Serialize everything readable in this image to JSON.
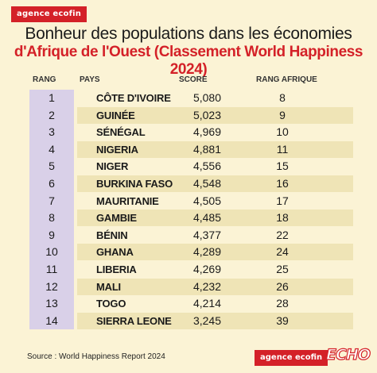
{
  "brand_top": "agence ecofin",
  "title_line1": "Bonheur des populations dans les économies",
  "title_line2": "d'Afrique de l'Ouest (Classement World Happiness 2024)",
  "columns": {
    "rank": "RANG",
    "country": "PAYS",
    "score": "SCORE",
    "africa_rank": "RANG AFRIQUE"
  },
  "rows": [
    {
      "rank": "1",
      "country": "CÔTE D'IVOIRE",
      "score": "5,080",
      "africa_rank": "8"
    },
    {
      "rank": "2",
      "country": "GUINÉE",
      "score": "5,023",
      "africa_rank": "9"
    },
    {
      "rank": "3",
      "country": "SÉNÉGAL",
      "score": "4,969",
      "africa_rank": "10"
    },
    {
      "rank": "4",
      "country": "NIGERIA",
      "score": "4,881",
      "africa_rank": "11"
    },
    {
      "rank": "5",
      "country": "NIGER",
      "score": "4,556",
      "africa_rank": "15"
    },
    {
      "rank": "6",
      "country": "BURKINA FASO",
      "score": "4,548",
      "africa_rank": "16"
    },
    {
      "rank": "7",
      "country": "MAURITANIE",
      "score": "4,505",
      "africa_rank": "17"
    },
    {
      "rank": "8",
      "country": "GAMBIE",
      "score": "4,485",
      "africa_rank": "18"
    },
    {
      "rank": "9",
      "country": "BÉNIN",
      "score": "4,377",
      "africa_rank": "22"
    },
    {
      "rank": "10",
      "country": "GHANA",
      "score": "4,289",
      "africa_rank": "24"
    },
    {
      "rank": "11",
      "country": "LIBERIA",
      "score": "4,269",
      "africa_rank": "25"
    },
    {
      "rank": "12",
      "country": "MALI",
      "score": "4,232",
      "africa_rank": "26"
    },
    {
      "rank": "13",
      "country": "TOGO",
      "score": "4,214",
      "africa_rank": "28"
    },
    {
      "rank": "14",
      "country": "SIERRA LEONE",
      "score": "3,245",
      "africa_rank": "39"
    }
  ],
  "source": "Source : World Happiness Report 2024",
  "brand_bottom": "agence ecofin",
  "brand_echo": "ECHO",
  "colors": {
    "background": "#fbf3d5",
    "accent_red": "#d42128",
    "rank_column": "#d9d0e8",
    "row_stripe": "#efe4b6"
  }
}
